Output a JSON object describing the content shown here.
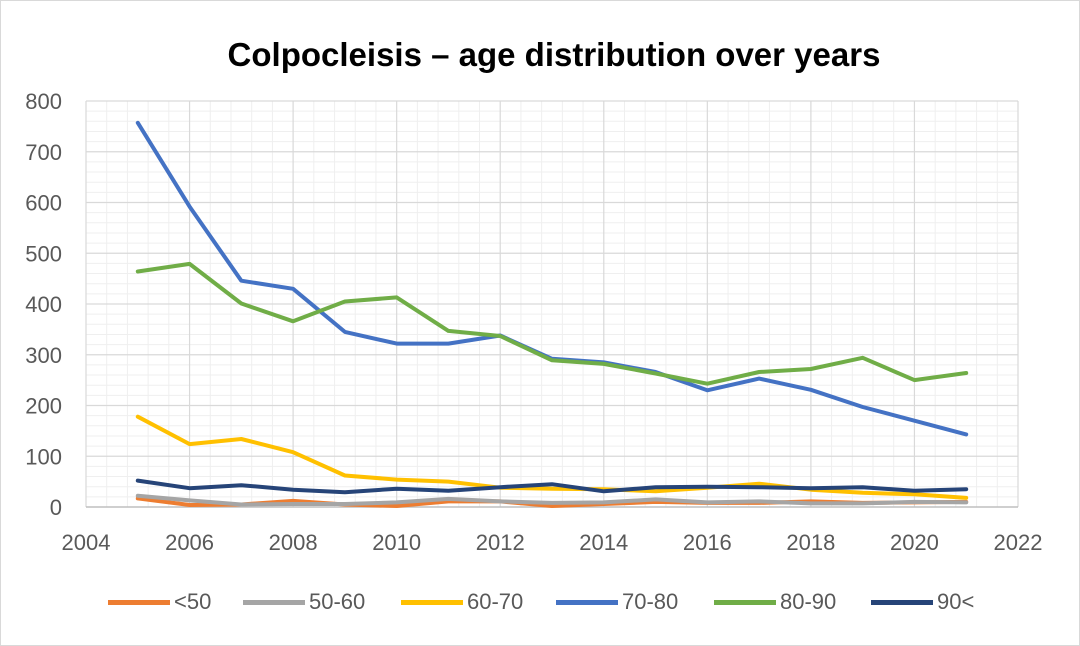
{
  "chart_data": {
    "type": "line",
    "title": "Colpocleisis – age distribution over years",
    "xlabel": "",
    "ylabel": "",
    "xlim": [
      2004,
      2022
    ],
    "ylim": [
      0,
      800
    ],
    "x_ticks": [
      "2004",
      "2006",
      "2008",
      "2010",
      "2012",
      "2014",
      "2016",
      "2018",
      "2020",
      "2022"
    ],
    "y_ticks": [
      "0",
      "100",
      "200",
      "300",
      "400",
      "500",
      "600",
      "700",
      "800"
    ],
    "grid": true,
    "legend_position": "bottom",
    "x": [
      2005,
      2006,
      2007,
      2008,
      2009,
      2010,
      2011,
      2012,
      2013,
      2014,
      2015,
      2016,
      2017,
      2018,
      2019,
      2020,
      2021
    ],
    "series": [
      {
        "name": "<50",
        "color": "#ED7D31",
        "values": [
          17,
          4,
          5,
          12,
          5,
          2,
          11,
          11,
          2,
          6,
          10,
          8,
          8,
          11,
          8,
          9,
          10
        ]
      },
      {
        "name": "50-60",
        "color": "#A5A5A5",
        "values": [
          22,
          13,
          5,
          6,
          6,
          9,
          16,
          11,
          8,
          9,
          15,
          9,
          11,
          7,
          7,
          10,
          9
        ]
      },
      {
        "name": "60-70",
        "color": "#FFC000",
        "values": [
          178,
          124,
          134,
          108,
          62,
          54,
          50,
          38,
          36,
          35,
          31,
          38,
          46,
          34,
          28,
          25,
          18
        ]
      },
      {
        "name": "70-80",
        "color": "#4472C4",
        "values": [
          757,
          592,
          446,
          430,
          345,
          322,
          322,
          338,
          292,
          285,
          266,
          230,
          253,
          231,
          197,
          170,
          143
        ]
      },
      {
        "name": "80-90",
        "color": "#70AD47",
        "values": [
          464,
          479,
          401,
          366,
          405,
          413,
          347,
          337,
          289,
          282,
          263,
          243,
          266,
          272,
          294,
          250,
          264
        ]
      },
      {
        "name": "90<",
        "color": "#264478",
        "values": [
          52,
          37,
          43,
          34,
          29,
          36,
          32,
          39,
          45,
          31,
          39,
          40,
          39,
          37,
          39,
          32,
          35
        ]
      }
    ]
  }
}
